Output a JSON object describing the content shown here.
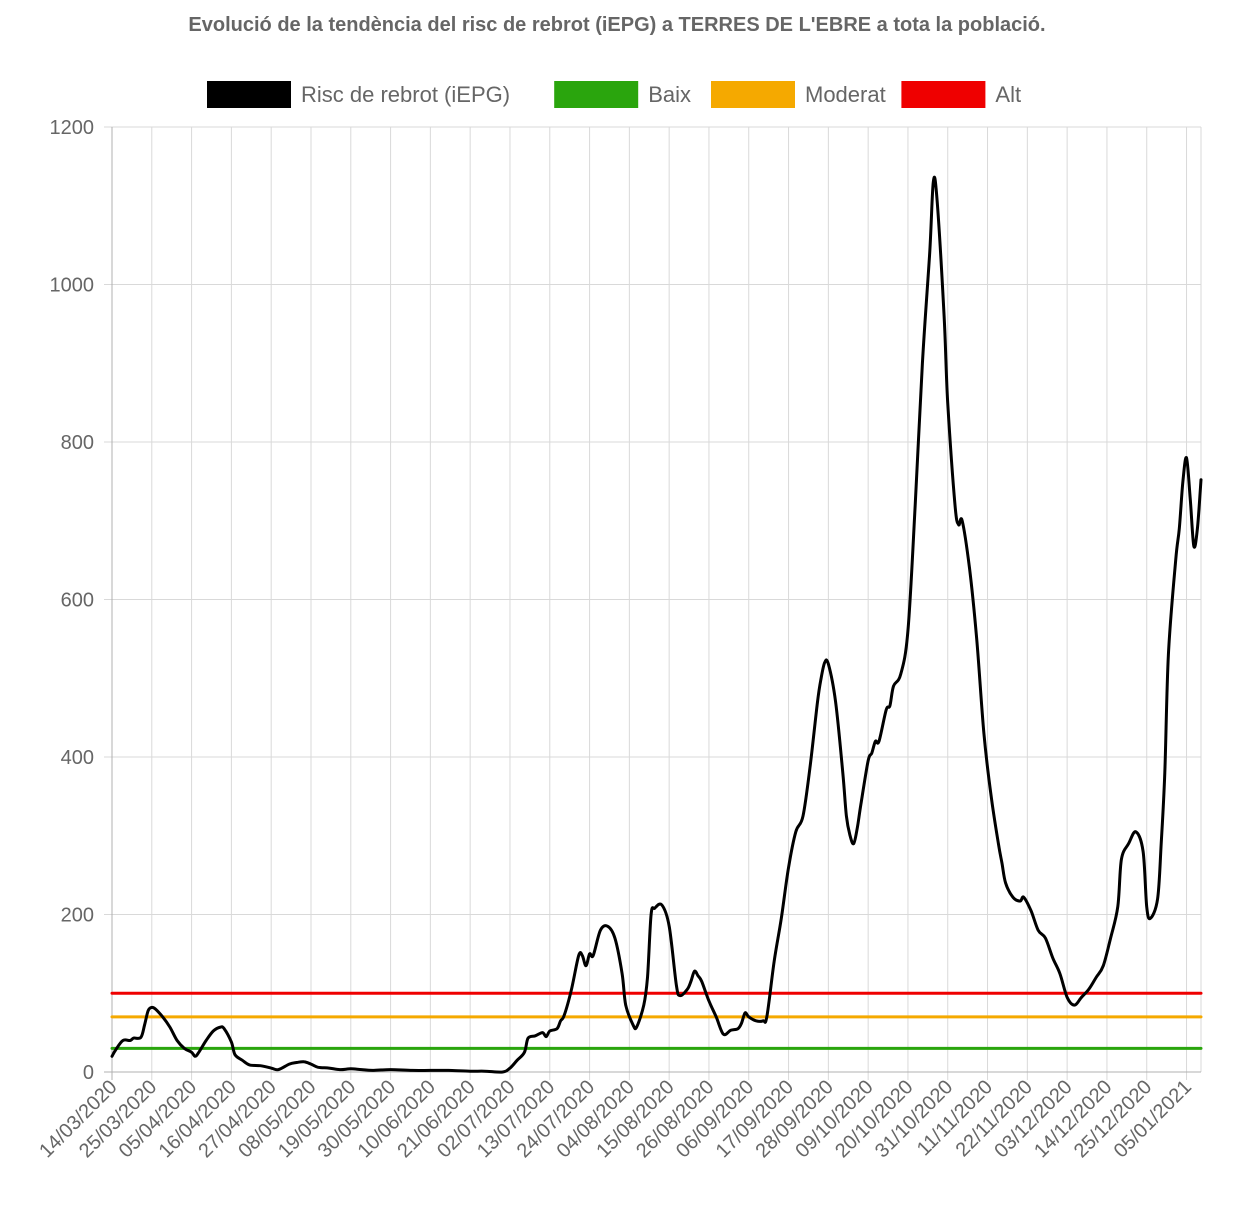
{
  "chart_data": {
    "type": "line",
    "title": "Evolució de la tendència del risc de rebrot (iEPG) a TERRES DE L'EBRE a tota la població.",
    "xlabel": "",
    "ylabel": "",
    "ylim": [
      0,
      1200
    ],
    "yticks": [
      0,
      200,
      400,
      600,
      800,
      1000,
      1200
    ],
    "xticks": [
      "14/03/2020",
      "25/03/2020",
      "05/04/2020",
      "16/04/2020",
      "27/04/2020",
      "08/05/2020",
      "19/05/2020",
      "30/05/2020",
      "10/06/2020",
      "21/06/2020",
      "02/07/2020",
      "13/07/2020",
      "24/07/2020",
      "04/08/2020",
      "15/08/2020",
      "26/08/2020",
      "06/09/2020",
      "17/09/2020",
      "28/09/2020",
      "09/10/2020",
      "20/10/2020",
      "31/10/2020",
      "11/11/2020",
      "22/11/2020",
      "03/12/2020",
      "14/12/2020",
      "25/12/2020",
      "05/01/2021"
    ],
    "grid": true,
    "legend_position": "top",
    "series": [
      {
        "name": "Risc de rebrot (iEPG)",
        "color": "#000000",
        "points": [
          [
            "14/03/2020",
            20
          ],
          [
            "15/03/2020",
            28
          ],
          [
            "17/03/2020",
            40
          ],
          [
            "19/03/2020",
            40
          ],
          [
            "20/03/2020",
            43
          ],
          [
            "22/03/2020",
            44
          ],
          [
            "23/03/2020",
            60
          ],
          [
            "24/03/2020",
            78
          ],
          [
            "25/03/2020",
            82
          ],
          [
            "26/03/2020",
            80
          ],
          [
            "28/03/2020",
            70
          ],
          [
            "30/03/2020",
            57
          ],
          [
            "01/04/2020",
            40
          ],
          [
            "03/04/2020",
            30
          ],
          [
            "05/04/2020",
            25
          ],
          [
            "06/04/2020",
            20
          ],
          [
            "07/04/2020",
            25
          ],
          [
            "09/04/2020",
            40
          ],
          [
            "11/04/2020",
            52
          ],
          [
            "13/04/2020",
            57
          ],
          [
            "14/04/2020",
            55
          ],
          [
            "16/04/2020",
            38
          ],
          [
            "17/04/2020",
            22
          ],
          [
            "19/04/2020",
            15
          ],
          [
            "21/04/2020",
            9
          ],
          [
            "24/04/2020",
            8
          ],
          [
            "27/04/2020",
            5
          ],
          [
            "29/04/2020",
            3
          ],
          [
            "02/05/2020",
            10
          ],
          [
            "04/05/2020",
            12
          ],
          [
            "06/05/2020",
            13
          ],
          [
            "08/05/2020",
            10
          ],
          [
            "10/05/2020",
            6
          ],
          [
            "13/05/2020",
            5
          ],
          [
            "16/05/2020",
            3
          ],
          [
            "19/05/2020",
            4
          ],
          [
            "22/05/2020",
            3
          ],
          [
            "25/05/2020",
            2
          ],
          [
            "30/05/2020",
            3
          ],
          [
            "05/06/2020",
            2
          ],
          [
            "10/06/2020",
            2
          ],
          [
            "15/06/2020",
            2
          ],
          [
            "21/06/2020",
            1
          ],
          [
            "25/06/2020",
            1
          ],
          [
            "30/06/2020",
            0
          ],
          [
            "02/07/2020",
            5
          ],
          [
            "04/07/2020",
            15
          ],
          [
            "06/07/2020",
            25
          ],
          [
            "07/07/2020",
            43
          ],
          [
            "09/07/2020",
            46
          ],
          [
            "11/07/2020",
            50
          ],
          [
            "12/07/2020",
            45
          ],
          [
            "13/07/2020",
            52
          ],
          [
            "15/07/2020",
            55
          ],
          [
            "16/07/2020",
            65
          ],
          [
            "17/07/2020",
            72
          ],
          [
            "19/07/2020",
            105
          ],
          [
            "21/07/2020",
            148
          ],
          [
            "22/07/2020",
            148
          ],
          [
            "23/07/2020",
            135
          ],
          [
            "24/07/2020",
            150
          ],
          [
            "25/07/2020",
            148
          ],
          [
            "27/07/2020",
            180
          ],
          [
            "29/07/2020",
            185
          ],
          [
            "31/07/2020",
            170
          ],
          [
            "02/08/2020",
            125
          ],
          [
            "03/08/2020",
            85
          ],
          [
            "05/08/2020",
            60
          ],
          [
            "06/08/2020",
            57
          ],
          [
            "08/08/2020",
            85
          ],
          [
            "09/08/2020",
            120
          ],
          [
            "10/08/2020",
            200
          ],
          [
            "11/08/2020",
            208
          ],
          [
            "13/08/2020",
            212
          ],
          [
            "15/08/2020",
            185
          ],
          [
            "17/08/2020",
            110
          ],
          [
            "18/08/2020",
            97
          ],
          [
            "20/08/2020",
            105
          ],
          [
            "21/08/2020",
            115
          ],
          [
            "22/08/2020",
            128
          ],
          [
            "23/08/2020",
            122
          ],
          [
            "24/08/2020",
            115
          ],
          [
            "26/08/2020",
            90
          ],
          [
            "28/08/2020",
            70
          ],
          [
            "30/08/2020",
            48
          ],
          [
            "01/09/2020",
            53
          ],
          [
            "03/09/2020",
            55
          ],
          [
            "04/09/2020",
            62
          ],
          [
            "05/09/2020",
            75
          ],
          [
            "06/09/2020",
            70
          ],
          [
            "08/09/2020",
            65
          ],
          [
            "10/09/2020",
            65
          ],
          [
            "11/09/2020",
            70
          ],
          [
            "13/09/2020",
            140
          ],
          [
            "15/09/2020",
            195
          ],
          [
            "17/09/2020",
            260
          ],
          [
            "19/09/2020",
            305
          ],
          [
            "21/09/2020",
            325
          ],
          [
            "23/09/2020",
            390
          ],
          [
            "25/09/2020",
            470
          ],
          [
            "26/09/2020",
            500
          ],
          [
            "27/09/2020",
            520
          ],
          [
            "28/09/2020",
            518
          ],
          [
            "30/09/2020",
            470
          ],
          [
            "02/10/2020",
            380
          ],
          [
            "03/10/2020",
            325
          ],
          [
            "04/10/2020",
            300
          ],
          [
            "05/10/2020",
            290
          ],
          [
            "06/10/2020",
            310
          ],
          [
            "07/10/2020",
            340
          ],
          [
            "09/10/2020",
            395
          ],
          [
            "10/10/2020",
            405
          ],
          [
            "11/10/2020",
            420
          ],
          [
            "12/10/2020",
            420
          ],
          [
            "14/10/2020",
            460
          ],
          [
            "15/10/2020",
            465
          ],
          [
            "16/10/2020",
            490
          ],
          [
            "18/10/2020",
            505
          ],
          [
            "20/10/2020",
            560
          ],
          [
            "22/10/2020",
            720
          ],
          [
            "24/10/2020",
            900
          ],
          [
            "26/10/2020",
            1040
          ],
          [
            "27/10/2020",
            1130
          ],
          [
            "28/10/2020",
            1110
          ],
          [
            "30/10/2020",
            960
          ],
          [
            "31/10/2020",
            850
          ],
          [
            "02/11/2020",
            720
          ],
          [
            "03/11/2020",
            695
          ],
          [
            "04/11/2020",
            700
          ],
          [
            "06/11/2020",
            640
          ],
          [
            "08/11/2020",
            550
          ],
          [
            "10/11/2020",
            430
          ],
          [
            "12/11/2020",
            350
          ],
          [
            "14/11/2020",
            290
          ],
          [
            "15/11/2020",
            265
          ],
          [
            "16/11/2020",
            240
          ],
          [
            "18/11/2020",
            222
          ],
          [
            "20/11/2020",
            217
          ],
          [
            "21/11/2020",
            222
          ],
          [
            "23/11/2020",
            205
          ],
          [
            "25/11/2020",
            180
          ],
          [
            "27/11/2020",
            170
          ],
          [
            "29/11/2020",
            145
          ],
          [
            "01/12/2020",
            125
          ],
          [
            "03/12/2020",
            95
          ],
          [
            "05/12/2020",
            85
          ],
          [
            "07/12/2020",
            95
          ],
          [
            "09/12/2020",
            105
          ],
          [
            "11/12/2020",
            120
          ],
          [
            "13/12/2020",
            135
          ],
          [
            "15/12/2020",
            170
          ],
          [
            "17/12/2020",
            210
          ],
          [
            "18/12/2020",
            270
          ],
          [
            "20/12/2020",
            290
          ],
          [
            "22/12/2020",
            305
          ],
          [
            "24/12/2020",
            280
          ],
          [
            "25/12/2020",
            210
          ],
          [
            "26/12/2020",
            195
          ],
          [
            "28/12/2020",
            220
          ],
          [
            "29/12/2020",
            290
          ],
          [
            "30/12/2020",
            380
          ],
          [
            "31/12/2020",
            530
          ],
          [
            "02/01/2021",
            650
          ],
          [
            "03/01/2021",
            690
          ],
          [
            "04/01/2021",
            750
          ],
          [
            "05/01/2021",
            780
          ],
          [
            "06/01/2021",
            730
          ],
          [
            "07/01/2021",
            668
          ],
          [
            "08/01/2021",
            690
          ],
          [
            "09/01/2021",
            752
          ]
        ]
      },
      {
        "name": "Baix",
        "color": "#2aa50d",
        "points": [
          [
            "14/03/2020",
            30
          ],
          [
            "09/01/2021",
            30
          ]
        ]
      },
      {
        "name": "Moderat",
        "color": "#f5a900",
        "points": [
          [
            "14/03/2020",
            70
          ],
          [
            "09/01/2021",
            70
          ]
        ]
      },
      {
        "name": "Alt",
        "color": "#ef0000",
        "points": [
          [
            "14/03/2020",
            100
          ],
          [
            "09/01/2021",
            100
          ]
        ]
      }
    ]
  }
}
